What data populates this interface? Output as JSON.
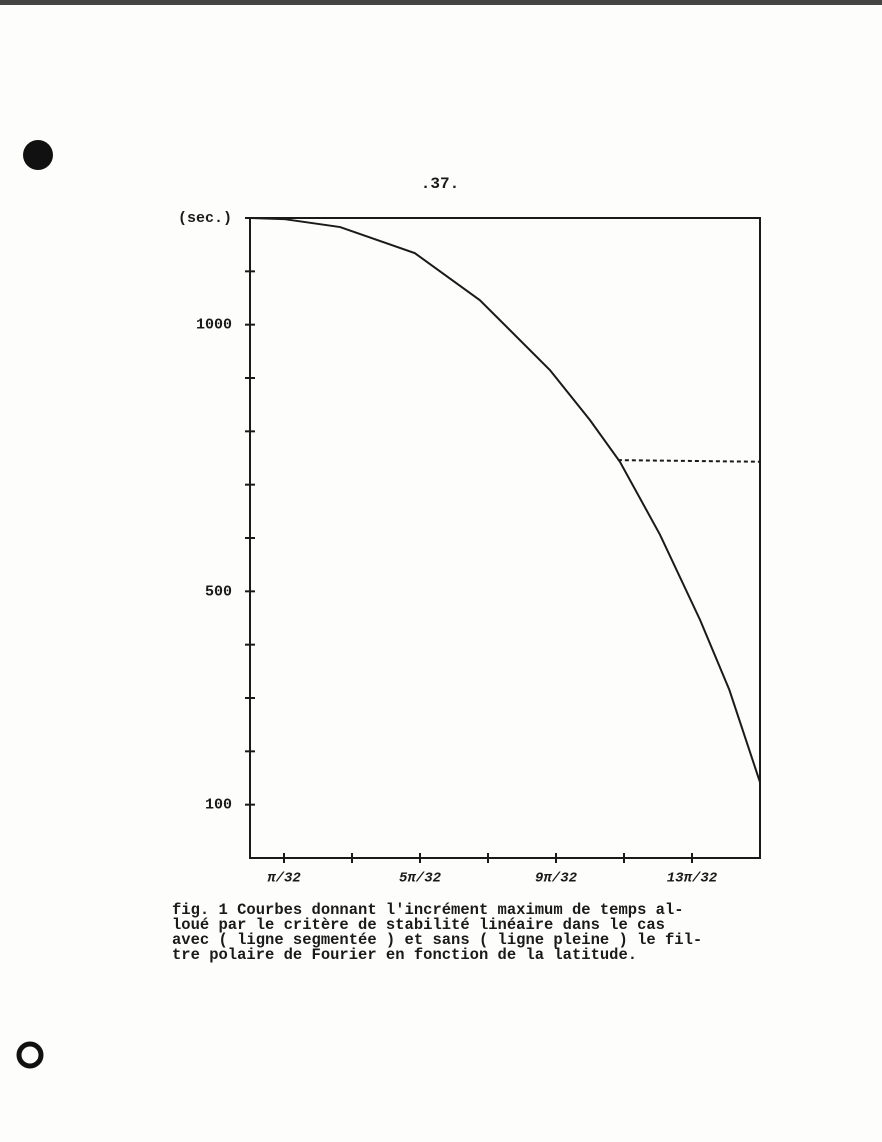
{
  "page_number": ".37.",
  "chart_data": {
    "type": "line",
    "y_label": "(sec.)",
    "xlim": [
      0,
      15
    ],
    "ylim": [
      0,
      1200
    ],
    "xticks": [
      {
        "value": 1,
        "label": "π/32"
      },
      {
        "value": 5,
        "label": "5π/32"
      },
      {
        "value": 9,
        "label": "9π/32"
      },
      {
        "value": 13,
        "label": "13π/32"
      }
    ],
    "x_minor_ticks": [
      3,
      7,
      11
    ],
    "yticks": [
      100,
      500,
      1000
    ],
    "y_minor_ticks": [
      200,
      300,
      400,
      600,
      700,
      800,
      900,
      1100,
      1200
    ],
    "series": [
      {
        "color": "#1a1a1a",
        "dash": false,
        "x": [
          0,
          1,
          2.65,
          4.85,
          6.76,
          8.82,
          10,
          10.88,
          12.06,
          13.24,
          14.1,
          15
        ],
        "y": [
          1200,
          1198,
          1183,
          1134,
          1046,
          915,
          821,
          743,
          606,
          446,
          315,
          142
        ]
      },
      {
        "color": "#1a1a1a",
        "dash": true,
        "x": [
          10.82,
          15
        ],
        "y": [
          746,
          743
        ]
      }
    ]
  },
  "caption": [
    "fig. 1  Courbes donnant l'incrément maximum de temps al-",
    "loué par le critère de stabilité linéaire dans le cas",
    "avec ( ligne segmentée ) et sans ( ligne pleine ) le fil-",
    "tre polaire de Fourier en fonction de la latitude."
  ]
}
